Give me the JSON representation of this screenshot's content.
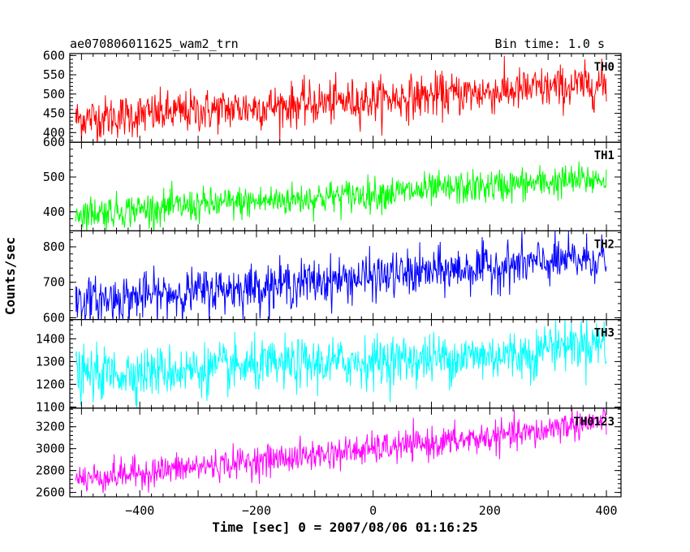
{
  "chart_data": {
    "type": "line",
    "title": "ae070806011625_wam2_trn",
    "bin_time": "Bin time: 1.0 s",
    "xlabel": "Time [sec] 0 = 2007/08/06 01:16:25",
    "ylabel": "Counts/sec",
    "xlim": [
      -520,
      425
    ],
    "x_range": [
      -510,
      400
    ],
    "x_step": 1,
    "xticks": [
      -400,
      -200,
      0,
      200,
      400
    ],
    "xtick_labels": [
      "−400",
      "−200",
      "0",
      "200",
      "400"
    ],
    "grid": false,
    "series": [
      {
        "name": "TH0",
        "color": "#ff0000",
        "ylim": [
          375,
          605
        ],
        "yticks": [
          400,
          450,
          500,
          550,
          600
        ],
        "trend_start": 435,
        "trend_end": 525,
        "noise": 28,
        "step_at": null,
        "step_size": 0
      },
      {
        "name": "TH1",
        "color": "#00ff00",
        "ylim": [
          345,
          600
        ],
        "yticks": [
          400,
          500,
          600
        ],
        "trend_start": 395,
        "trend_end": 495,
        "noise": 24,
        "step_at": null,
        "step_size": 0
      },
      {
        "name": "TH2",
        "color": "#0000ff",
        "ylim": [
          595,
          845
        ],
        "yticks": [
          600,
          700,
          800
        ],
        "trend_start": 645,
        "trend_end": 770,
        "noise": 32,
        "step_at": null,
        "step_size": 0
      },
      {
        "name": "TH3",
        "color": "#00ffff",
        "ylim": [
          1095,
          1485
        ],
        "yticks": [
          1100,
          1200,
          1300,
          1400
        ],
        "trend_start": 1240,
        "trend_end": 1350,
        "noise": 55,
        "step_at": 290,
        "step_size": 70
      },
      {
        "name": "TH0123",
        "color": "#ff00ff",
        "ylim": [
          2560,
          3370
        ],
        "yticks": [
          2600,
          2800,
          3000,
          3200
        ],
        "trend_start": 2720,
        "trend_end": 3210,
        "noise": 70,
        "step_at": 300,
        "step_size": 80
      }
    ]
  }
}
